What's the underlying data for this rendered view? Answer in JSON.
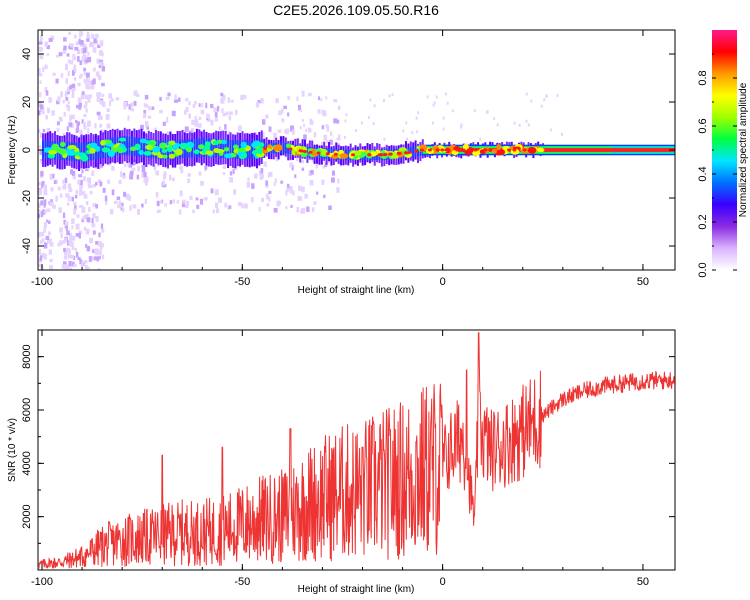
{
  "chart_data": [
    {
      "type": "heatmap",
      "title": "C2E5.2026.109.05.50.R16",
      "xlabel": "Height of straight line (km)",
      "ylabel": "Frequency (Hz)",
      "xlim": [
        -101,
        58
      ],
      "ylim": [
        -50,
        50
      ],
      "xticks": [
        "-100",
        "-50",
        "0",
        "50"
      ],
      "yticks": [
        "40",
        "20",
        "0",
        "-20",
        "-40"
      ],
      "colorbar": {
        "label": "Normalized spectral amplitude",
        "range": [
          0,
          1
        ],
        "ticks": [
          "0.0",
          "0.2",
          "0.4",
          "0.6",
          "0.8"
        ],
        "colors": [
          "#ffffff",
          "#d9b3ff",
          "#8a2be2",
          "#3a00ff",
          "#0070ff",
          "#00e5ff",
          "#00ff40",
          "#a0ff00",
          "#ffff00",
          "#ff9900",
          "#ff0000",
          "#ff1a8c"
        ]
      },
      "ridge": {
        "description_points_km_hz": [
          [
            -98,
            0
          ],
          [
            -90,
            -1
          ],
          [
            -80,
            2
          ],
          [
            -70,
            0
          ],
          [
            -60,
            1
          ],
          [
            -50,
            0
          ],
          [
            -40,
            1
          ],
          [
            -33,
            -1
          ],
          [
            -25,
            -2
          ],
          [
            -15,
            -2
          ],
          [
            -8,
            -1
          ],
          [
            -5,
            0
          ],
          [
            0,
            0
          ],
          [
            10,
            0
          ],
          [
            25,
            0
          ],
          [
            40,
            0
          ],
          [
            58,
            0
          ]
        ]
      }
    },
    {
      "type": "line",
      "xlabel": "Height of straight line (km)",
      "ylabel": "SNR (10 * v/v)",
      "xlim": [
        -101,
        58
      ],
      "ylim": [
        0,
        9000
      ],
      "xticks": [
        "-100",
        "-50",
        "0",
        "50"
      ],
      "yticks": [
        "8000",
        "6000",
        "4000",
        "2000"
      ],
      "series_color": "#ee3333",
      "envelope": {
        "x": [
          -101,
          -95,
          -90,
          -85,
          -80,
          -75,
          -70,
          -65,
          -60,
          -55,
          -50,
          -45,
          -40,
          -35,
          -30,
          -25,
          -20,
          -15,
          -10,
          -5,
          0,
          2,
          5,
          7,
          8,
          9,
          10,
          12,
          15,
          20,
          25,
          30,
          35,
          40,
          45,
          50,
          55,
          58
        ],
        "y": [
          200,
          300,
          500,
          900,
          1100,
          1200,
          1300,
          1400,
          1400,
          1500,
          1700,
          1900,
          2000,
          2400,
          2700,
          2900,
          3000,
          3200,
          3400,
          3700,
          4000,
          4500,
          5000,
          3000,
          1800,
          6000,
          5000,
          4500,
          4700,
          5200,
          5800,
          6400,
          6700,
          6900,
          7000,
          7100,
          7100,
          7150
        ]
      },
      "spikes": {
        "x": [
          -70,
          -55,
          -38,
          -20,
          6,
          9
        ],
        "y": [
          4300,
          4600,
          5300,
          4600,
          7500,
          8900
        ]
      }
    }
  ]
}
